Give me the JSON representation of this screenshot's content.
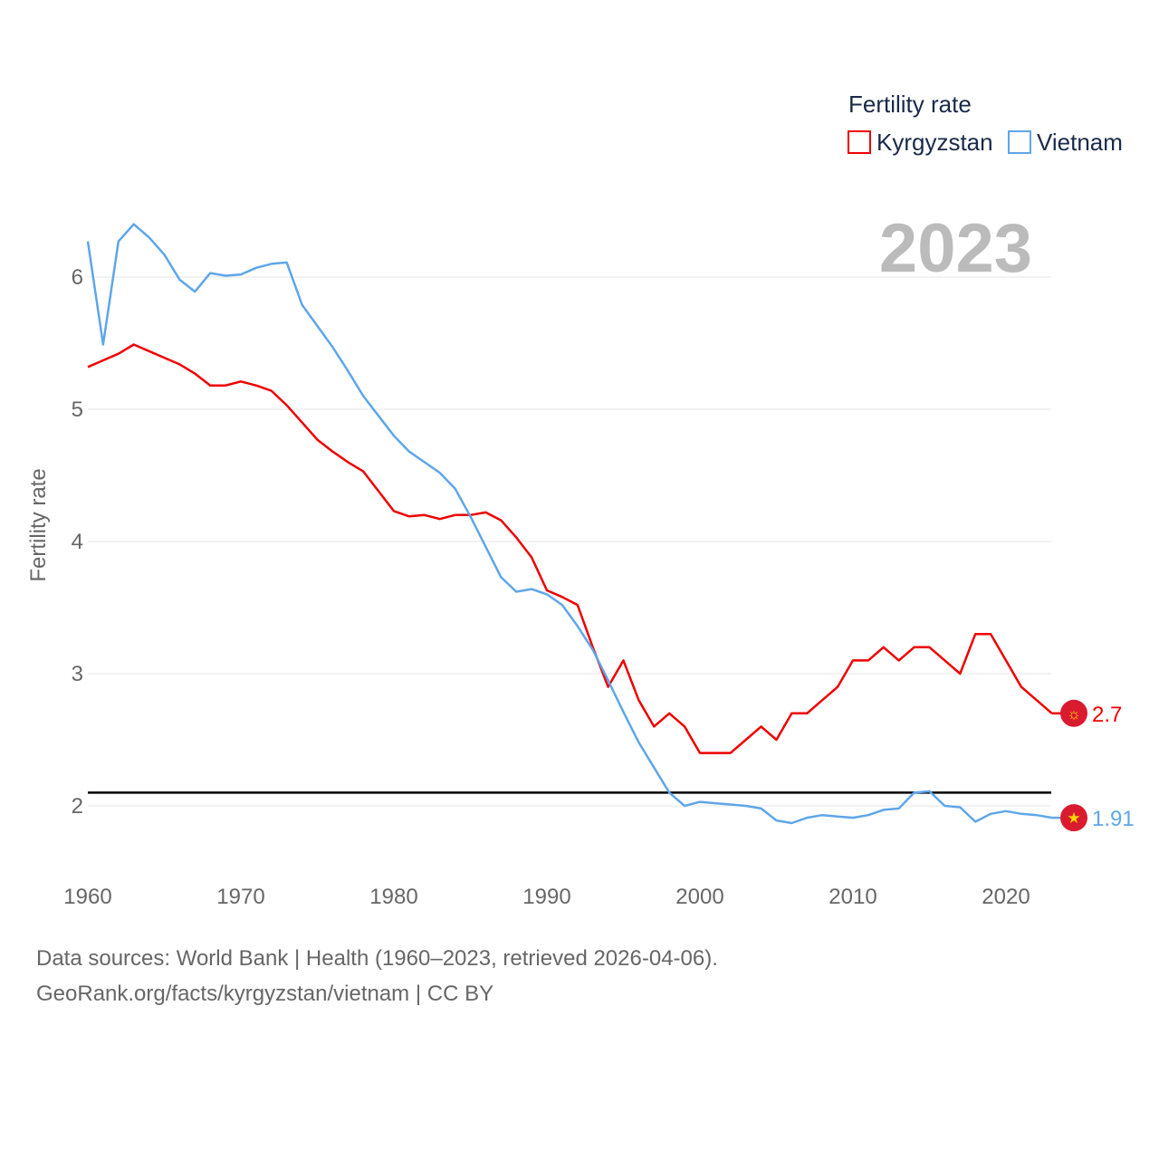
{
  "chart_data": {
    "type": "line",
    "title": "Fertility rate",
    "ylabel": "Fertility rate",
    "xlabel": "",
    "year_label": "2023",
    "xlim": [
      1960,
      2023
    ],
    "ylim": [
      1.5,
      6.5
    ],
    "x_ticks": [
      1960,
      1970,
      1980,
      1990,
      2000,
      2010,
      2020
    ],
    "y_ticks": [
      2,
      3,
      4,
      5,
      6
    ],
    "grid": true,
    "legend_position": "top-right",
    "reference_line": {
      "value": 2.1,
      "color": "#000000"
    },
    "x": [
      1960,
      1961,
      1962,
      1963,
      1964,
      1965,
      1966,
      1967,
      1968,
      1969,
      1970,
      1971,
      1972,
      1973,
      1974,
      1975,
      1976,
      1977,
      1978,
      1979,
      1980,
      1981,
      1982,
      1983,
      1984,
      1985,
      1986,
      1987,
      1988,
      1989,
      1990,
      1991,
      1992,
      1993,
      1994,
      1995,
      1996,
      1997,
      1998,
      1999,
      2000,
      2001,
      2002,
      2003,
      2004,
      2005,
      2006,
      2007,
      2008,
      2009,
      2010,
      2011,
      2012,
      2013,
      2014,
      2015,
      2016,
      2017,
      2018,
      2019,
      2020,
      2021,
      2022,
      2023
    ],
    "series": [
      {
        "name": "Kyrgyzstan",
        "color": "#ee0000",
        "end_label": "2.7",
        "flag": "sun-flag-icon",
        "values": [
          5.32,
          5.37,
          5.42,
          5.49,
          5.44,
          5.39,
          5.34,
          5.27,
          5.18,
          5.18,
          5.21,
          5.18,
          5.14,
          5.03,
          4.9,
          4.77,
          4.68,
          4.6,
          4.53,
          4.38,
          4.23,
          4.19,
          4.2,
          4.17,
          4.2,
          4.2,
          4.22,
          4.16,
          4.03,
          3.88,
          3.63,
          3.58,
          3.52,
          3.2,
          2.9,
          3.1,
          2.8,
          2.6,
          2.7,
          2.6,
          2.4,
          2.4,
          2.4,
          2.5,
          2.6,
          2.5,
          2.7,
          2.7,
          2.8,
          2.9,
          3.1,
          3.1,
          3.2,
          3.1,
          3.2,
          3.2,
          3.1,
          3.0,
          3.3,
          3.3,
          3.1,
          2.9,
          2.8,
          2.7
        ]
      },
      {
        "name": "Vietnam",
        "color": "#5ea6ea",
        "end_label": "1.91",
        "flag": "star-flag-icon",
        "values": [
          6.27,
          5.49,
          6.27,
          6.4,
          6.3,
          6.17,
          5.98,
          5.89,
          6.03,
          6.01,
          6.02,
          6.07,
          6.1,
          6.11,
          5.79,
          5.63,
          5.47,
          5.29,
          5.1,
          4.95,
          4.8,
          4.68,
          4.6,
          4.52,
          4.4,
          4.19,
          3.96,
          3.73,
          3.62,
          3.64,
          3.6,
          3.52,
          3.36,
          3.18,
          2.95,
          2.71,
          2.48,
          2.29,
          2.1,
          2.0,
          2.03,
          2.02,
          2.01,
          2.0,
          1.98,
          1.89,
          1.87,
          1.91,
          1.93,
          1.92,
          1.91,
          1.93,
          1.97,
          1.98,
          2.1,
          2.11,
          2.0,
          1.99,
          1.88,
          1.94,
          1.96,
          1.94,
          1.93,
          1.91
        ]
      }
    ]
  },
  "footer": {
    "line1": "Data sources: World Bank | Health (1960–2023, retrieved 2026-04-06).",
    "line2": "GeoRank.org/facts/kyrgyzstan/vietnam | CC BY"
  }
}
